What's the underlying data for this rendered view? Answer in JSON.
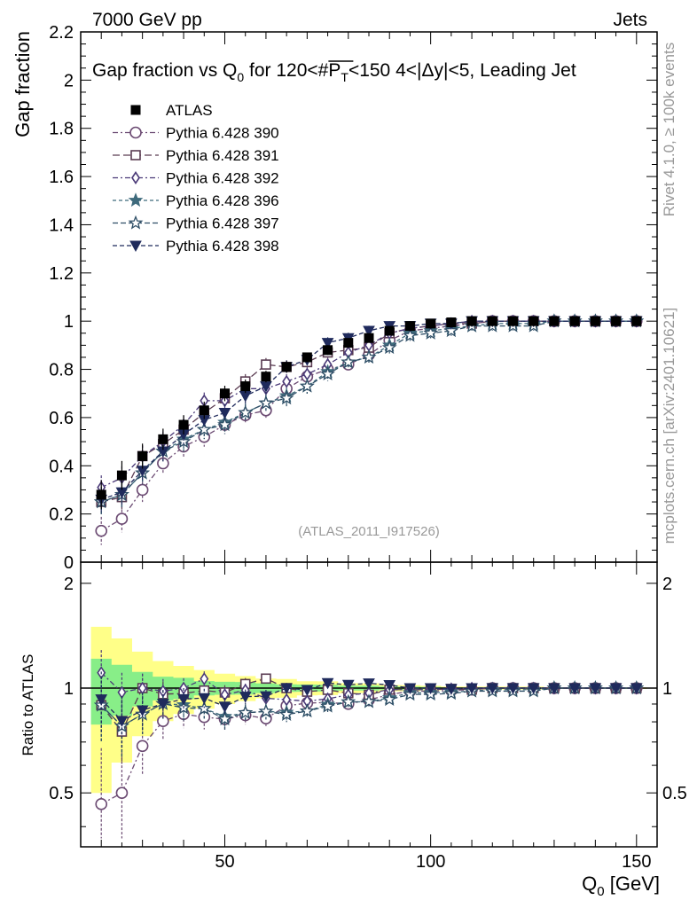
{
  "header": {
    "left": "7000 GeV pp",
    "right": "Jets"
  },
  "side_labels": {
    "top": "Rivet 4.1.0, ≥ 100k events",
    "bottom": "mcplots.cern.ch [arXiv:2401.10621]"
  },
  "chart_data": {
    "type": "scatter",
    "title": "Gap fraction vs Q0 for 120<#PT<150  4<|Δy|<5, Leading Jet",
    "title_parts": {
      "a": "Gap fraction vs Q",
      "a_sub": "0",
      "b": " for 120<#",
      "b_bar": "P",
      "b_bar_sub": "T",
      "c": "<150  4<|Δy|<5, Leading Jet"
    },
    "analysis_tag": "(ATLAS_2011_I917526)",
    "xlabel": "Q0 [GeV]",
    "xlabel_parts": {
      "main": "Q",
      "sub": "0",
      "unit": " [GeV]"
    },
    "ylabel": "Gap fraction",
    "ratio_ylabel": "Ratio to ATLAS",
    "xlim": [
      15,
      155
    ],
    "ylim": [
      0,
      2.2
    ],
    "ratio_ylim": [
      0.35,
      2.3
    ],
    "x_ticks": [
      50,
      100,
      150
    ],
    "x_tick_labels": [
      "50",
      "100",
      "150"
    ],
    "y_ticks": [
      0,
      0.2,
      0.4,
      0.6,
      0.8,
      1,
      1.2,
      1.4,
      1.6,
      1.8,
      2,
      2.2
    ],
    "y_tick_labels": [
      "0",
      "0.2",
      "0.4",
      "0.6",
      "0.8",
      "1",
      "1.2",
      "1.4",
      "1.6",
      "1.8",
      "2",
      "2.2"
    ],
    "ratio_ticks": [
      0.5,
      1,
      2
    ],
    "ratio_tick_labels": [
      "0.5",
      "1",
      "2"
    ],
    "x": [
      20,
      25,
      30,
      35,
      40,
      45,
      50,
      55,
      60,
      65,
      70,
      75,
      80,
      85,
      90,
      95,
      100,
      105,
      110,
      115,
      120,
      125,
      130,
      135,
      140,
      145,
      150
    ],
    "data": {
      "name": "ATLAS",
      "values": [
        0.28,
        0.36,
        0.44,
        0.51,
        0.57,
        0.63,
        0.7,
        0.73,
        0.77,
        0.81,
        0.85,
        0.88,
        0.91,
        0.93,
        0.96,
        0.98,
        0.99,
        0.995,
        1,
        1,
        1,
        1,
        1,
        1,
        1,
        1,
        1
      ]
    },
    "series": [
      {
        "name": "Pythia 6.428 390",
        "color": "#6b4a72",
        "marker": "circle-open",
        "dash": "6,3,2,3",
        "err": 0.05,
        "values": [
          0.13,
          0.18,
          0.3,
          0.41,
          0.48,
          0.52,
          0.57,
          0.61,
          0.63,
          0.72,
          0.77,
          0.8,
          0.82,
          0.86,
          0.92,
          0.96,
          0.97,
          0.98,
          0.99,
          1,
          1,
          1,
          1,
          1,
          1,
          1,
          1
        ]
      },
      {
        "name": "Pythia 6.428 391",
        "color": "#5a3c52",
        "marker": "square-open",
        "dash": "8,4",
        "err": 0.05,
        "values": [
          0.25,
          0.27,
          0.44,
          0.49,
          0.55,
          0.62,
          0.68,
          0.75,
          0.82,
          0.81,
          0.83,
          0.87,
          0.88,
          0.89,
          0.95,
          0.97,
          0.98,
          0.99,
          0.99,
          1,
          1,
          1,
          1,
          1,
          1,
          1,
          1
        ]
      },
      {
        "name": "Pythia 6.428 392",
        "color": "#4b3a78",
        "marker": "diamond-open",
        "dash": "6,3,2,3",
        "err": 0.05,
        "values": [
          0.31,
          0.35,
          0.44,
          0.5,
          0.57,
          0.67,
          0.67,
          0.72,
          0.72,
          0.75,
          0.78,
          0.82,
          0.87,
          0.9,
          0.95,
          0.97,
          0.98,
          0.99,
          1,
          1,
          1,
          1,
          1,
          1,
          1,
          1,
          1
        ]
      },
      {
        "name": "Pythia 6.428 396",
        "color": "#3e6a7c",
        "marker": "star-filled",
        "dash": "4,3",
        "err": 0.05,
        "values": [
          0.25,
          0.28,
          0.37,
          0.46,
          0.51,
          0.55,
          0.58,
          0.62,
          0.66,
          0.69,
          0.73,
          0.79,
          0.83,
          0.85,
          0.9,
          0.95,
          0.96,
          0.97,
          0.98,
          0.99,
          0.99,
          0.99,
          1,
          1,
          1,
          1,
          1
        ]
      },
      {
        "name": "Pythia 6.428 397",
        "color": "#2e4e66",
        "marker": "star-open",
        "dash": "6,3",
        "err": 0.05,
        "values": [
          0.25,
          0.28,
          0.37,
          0.46,
          0.5,
          0.55,
          0.57,
          0.62,
          0.66,
          0.68,
          0.73,
          0.78,
          0.83,
          0.85,
          0.89,
          0.94,
          0.95,
          0.96,
          0.98,
          0.98,
          0.98,
          0.98,
          1,
          1,
          1,
          1,
          1
        ]
      },
      {
        "name": "Pythia 6.428 398",
        "color": "#1f2a5c",
        "marker": "triangle-down-filled",
        "dash": "5,3",
        "err": 0.05,
        "values": [
          0.26,
          0.29,
          0.38,
          0.46,
          0.53,
          0.59,
          0.62,
          0.69,
          0.73,
          0.81,
          0.84,
          0.91,
          0.93,
          0.96,
          0.98,
          0.98,
          0.99,
          0.99,
          1,
          1,
          1,
          1,
          1,
          1,
          1,
          1,
          1
        ]
      }
    ],
    "data_band": {
      "outer": [
        0.14,
        0.14,
        0.12,
        0.1,
        0.09,
        0.08,
        0.07,
        0.06,
        0.05,
        0.05,
        0.04,
        0.04,
        0.03,
        0.03,
        0.02,
        0.02,
        0.015,
        0.01,
        0.01,
        0.01,
        0.01,
        0.01,
        0.005,
        0.005,
        0.005,
        0.005,
        0.005
      ],
      "inner": [
        0.06,
        0.06,
        0.05,
        0.04,
        0.04,
        0.03,
        0.03,
        0.03,
        0.025,
        0.02,
        0.02,
        0.02,
        0.015,
        0.015,
        0.01,
        0.01,
        0.008,
        0.005,
        0.005,
        0.005,
        0.005,
        0.005,
        0.003,
        0.003,
        0.003,
        0.003,
        0.003
      ],
      "outer_color": "#ffff88",
      "inner_color": "#88ee88"
    },
    "legend_position": "top-left"
  }
}
